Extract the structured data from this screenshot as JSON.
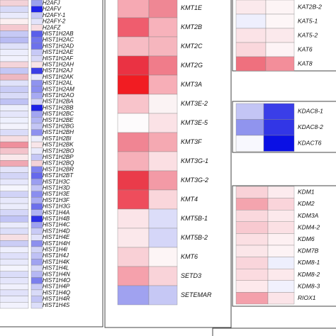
{
  "chart_data": [
    {
      "type": "heatmap",
      "rows": [
        "H2AFJ",
        "H2AFV",
        "H2AFY-1",
        "H2AFY-2",
        "H2AFZ",
        "HIST1H2AB",
        "HIST1H2AC",
        "HIST1H2AD",
        "HIST1H2AE",
        "HIST1H2AF",
        "HIST1H2AH",
        "HIST1H2AJ",
        "HIST1H2AK",
        "HIST1H2AL",
        "HIST1H2AM",
        "HIST1H2AO",
        "HIST1H2BA",
        "HIST1H2BB",
        "HIST1H2BC",
        "HIST1H2BE",
        "HIST1H2BG",
        "HIST1H2BH",
        "HIST1H2BI",
        "HIST1H2BK",
        "HIST1H2BO",
        "HIST1H2BP",
        "HIST1H2BQ",
        "HIST1H2BR",
        "HIST1H2BT",
        "HIST1H3C",
        "HIST1H3D",
        "HIST1H3E",
        "HIST1H3F",
        "HIST1H3G",
        "HIST1H4A",
        "HIST1H4B",
        "HIST1H4C",
        "HIST1H4D",
        "HIST1H4E",
        "HIST1H4H",
        "HIST1H4I",
        "HIST1H4J",
        "HIST1H4K",
        "HIST1H4L",
        "HIST1H4N",
        "HIST1H4O",
        "HIST1H4P",
        "HIST1H4Q",
        "HIST1H4R",
        "HIST1H4S"
      ],
      "colors": [
        [
          "#f3d2d8",
          "#9aa0ee"
        ],
        [
          "#d7daf8",
          "#1f23e8"
        ],
        [
          "#e9eafc",
          "#c6c8f6"
        ],
        [
          "#fbeff1",
          "#e2e3fa"
        ],
        [
          "#f4c8cf",
          "#f7dde2"
        ],
        [
          "#c6c9f5",
          "#5a5fea"
        ],
        [
          "#b8bbf3",
          "#7276ee"
        ],
        [
          "#dfe1fa",
          "#6d71ec"
        ],
        [
          "#ecedfc",
          "#c7c9f6"
        ],
        [
          "#f1f1fd",
          "#d8d9f8"
        ],
        [
          "#f4d4da",
          "#f8e4e8"
        ],
        [
          "#c4c7f5",
          "#3b3fe6"
        ],
        [
          "#eeb8c1",
          "#e8e9fb"
        ],
        [
          "#e0e2fa",
          "#8f93ef"
        ],
        [
          "#c9ccf6",
          "#8b8fef"
        ],
        [
          "#d9dbf8",
          "#a7aaf2"
        ],
        [
          "#bfc2f4",
          "#d2d3f7"
        ],
        [
          "#eceefc",
          "#1d21e6"
        ],
        [
          "#e5e6fb",
          "#a2a5f1"
        ],
        [
          "#eef0fd",
          "#b2b5f3"
        ],
        [
          "#f3f3fd",
          "#c4c6f5"
        ],
        [
          "#dadcf9",
          "#8e91ef"
        ],
        [
          "#f6dde2",
          "#edeefc"
        ],
        [
          "#ef8f9c",
          "#f8e5e9"
        ],
        [
          "#f3c3cb",
          "#e9eafb"
        ],
        [
          "#fae8eb",
          "#c5c7f5"
        ],
        [
          "#f0a8b3",
          "#f4d2d8"
        ],
        [
          "#e3e4fa",
          "#7e82ee"
        ],
        [
          "#d3d5f7",
          "#6569ec"
        ],
        [
          "#e6e7fb",
          "#9b9ef1"
        ],
        [
          "#f5f5fd",
          "#c1c3f5"
        ],
        [
          "#d1d3f7",
          "#8a8eef"
        ],
        [
          "#e7e8fb",
          "#a9acf2"
        ],
        [
          "#ebecfc",
          "#6c70ec"
        ],
        [
          "#d5d7f8",
          "#b0b3f3"
        ],
        [
          "#c1c4f5",
          "#2c30e6"
        ],
        [
          "#eaebfc",
          "#9ea1f1"
        ],
        [
          "#dcdef9",
          "#c9cbf6"
        ],
        [
          "#f6dfe3",
          "#e0e1fa"
        ],
        [
          "#cbcdf6",
          "#8d90ef"
        ],
        [
          "#eeeffd",
          "#d2d4f7"
        ],
        [
          "#dfe0fa",
          "#bfc1f5"
        ],
        [
          "#e8e9fb",
          "#a0a3f1"
        ],
        [
          "#f4f4fd",
          "#d6d8f8"
        ],
        [
          "#dbddf9",
          "#b5b7f3"
        ],
        [
          "#e4e5fb",
          "#7b7fed"
        ],
        [
          "#f0f0fd",
          "#c8caf6"
        ],
        [
          "#e1e2fa",
          "#d9dbf8"
        ],
        [
          "#eaebfc",
          "#c3c5f5"
        ],
        [
          "#f2f2fd",
          "#dcdef9"
        ]
      ]
    },
    {
      "type": "heatmap",
      "rows": [
        "KMT1E",
        "KMT2B",
        "KMT2C",
        "KMT2G",
        "KMT3A",
        "KMT3E-2",
        "KMT3E-5",
        "KMT3F",
        "KMT3G-1",
        "KMT3G-2",
        "KMT4",
        "KMT5B-1",
        "KMT5B-2",
        "KMT6",
        "SETD3",
        "SETEMAR"
      ],
      "colors": [
        [
          "#f6a9b3",
          "#ef8794"
        ],
        [
          "#ef5d6e",
          "#f7b2bb"
        ],
        [
          "#f7bcc4",
          "#f6b6be"
        ],
        [
          "#ea3243",
          "#f07c8a"
        ],
        [
          "#f11c22",
          "#f7aeb7"
        ],
        [
          "#f8c4cb",
          "#fbf3f4"
        ],
        [
          "#fdfbfc",
          "#fbe2e6"
        ],
        [
          "#f08593",
          "#f5a9b2"
        ],
        [
          "#f6b0b9",
          "#fbdfe3"
        ],
        [
          "#ea3b4a",
          "#f39aa6"
        ],
        [
          "#ee4d5c",
          "#fad6db"
        ],
        [
          "#fbe4e8",
          "#dcddf9"
        ],
        [
          "#fbe8eb",
          "#d5d6f8"
        ],
        [
          "#f9d0d6",
          "#fdf5f6"
        ],
        [
          "#f5a1ac",
          "#f9d3d9"
        ],
        [
          "#a0a2f0",
          "#c6c8f5"
        ]
      ]
    },
    {
      "type": "heatmap",
      "rows": [
        "KAT2B-2",
        "KAT5-1",
        "KAT5-2",
        "KAT6",
        "KAT8"
      ],
      "colors": [
        [
          "#fbe9ec",
          "#fdf4f5"
        ],
        [
          "#eeeffd",
          "#fdf6f7"
        ],
        [
          "#fbe3e7",
          "#fbe9ec"
        ],
        [
          "#fad7dc",
          "#fdf3f5"
        ],
        [
          "#ef707e",
          "#f38e9a"
        ]
      ]
    },
    {
      "type": "heatmap",
      "rows": [
        "KDAC8-1",
        "KDAC8-2",
        "KDACT6"
      ],
      "colors": [
        [
          "#c3c5f5",
          "#3a3ee8"
        ],
        [
          "#9094ee",
          "#3236e6"
        ],
        [
          "#f8f8fe",
          "#0a10e4"
        ]
      ]
    },
    {
      "type": "heatmap",
      "rows": [
        "KDM1",
        "KDM2",
        "KDM3A",
        "KDM4-2",
        "KDM6",
        "KDM7B",
        "KDM8-1",
        "KDM8-2",
        "KDM8-3",
        "RIOX1"
      ],
      "colors": [
        [
          "#f9d2d8",
          "#fcebee"
        ],
        [
          "#f4a4ae",
          "#fad4da"
        ],
        [
          "#fad8dd",
          "#fce9ec"
        ],
        [
          "#f8c9d0",
          "#fbe0e4"
        ],
        [
          "#fbdfe3",
          "#fdf0f2"
        ],
        [
          "#fbe6e9",
          "#fdf3f5"
        ],
        [
          "#f9d5db",
          "#eeeffd"
        ],
        [
          "#fbdbe0",
          "#fce9ec"
        ],
        [
          "#fde9ec",
          "#f1f1fd"
        ],
        [
          "#f4a0ab",
          "#fbe4e8"
        ]
      ]
    }
  ]
}
